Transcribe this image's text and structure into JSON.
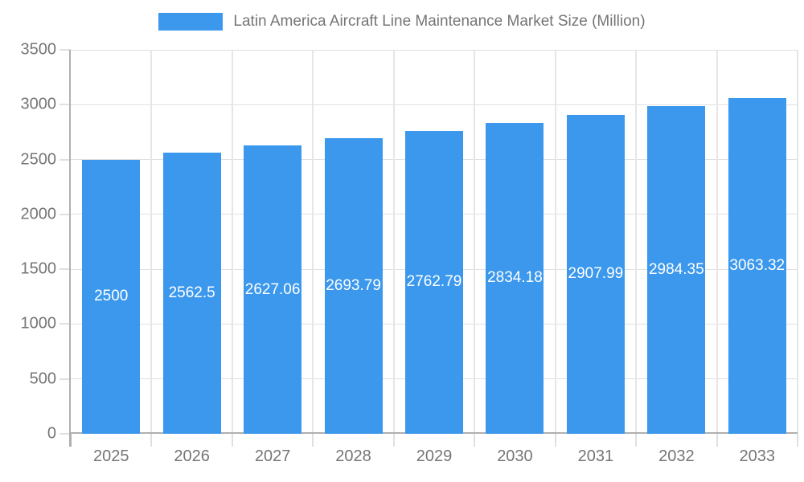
{
  "chart_data": {
    "type": "bar",
    "title": "Latin America Aircraft Line Maintenance Market Size (Million)",
    "categories": [
      "2025",
      "2026",
      "2027",
      "2028",
      "2029",
      "2030",
      "2031",
      "2032",
      "2033"
    ],
    "values": [
      2500,
      2562.5,
      2627.06,
      2693.79,
      2762.79,
      2834.18,
      2907.99,
      2984.35,
      3063.32
    ],
    "value_labels": [
      "2500",
      "2562.5",
      "2627.06",
      "2693.79",
      "2762.79",
      "2834.18",
      "2907.99",
      "2984.35",
      "3063.32"
    ],
    "xlabel": "",
    "ylabel": "",
    "ylim": [
      0,
      3500
    ],
    "ytick_step": 500,
    "y_tick_labels": [
      "0",
      "500",
      "1000",
      "1500",
      "2000",
      "2500",
      "3000",
      "3500"
    ],
    "grid": true,
    "legend_position": "top",
    "colors": {
      "bar": "#3b98ec",
      "bar_value_text": "#ffffff",
      "axis_text": "#757575",
      "title_text": "#757575",
      "gridline": "#e0e0e0",
      "axis_line": "#b0b0b0",
      "background": "#ffffff"
    }
  }
}
